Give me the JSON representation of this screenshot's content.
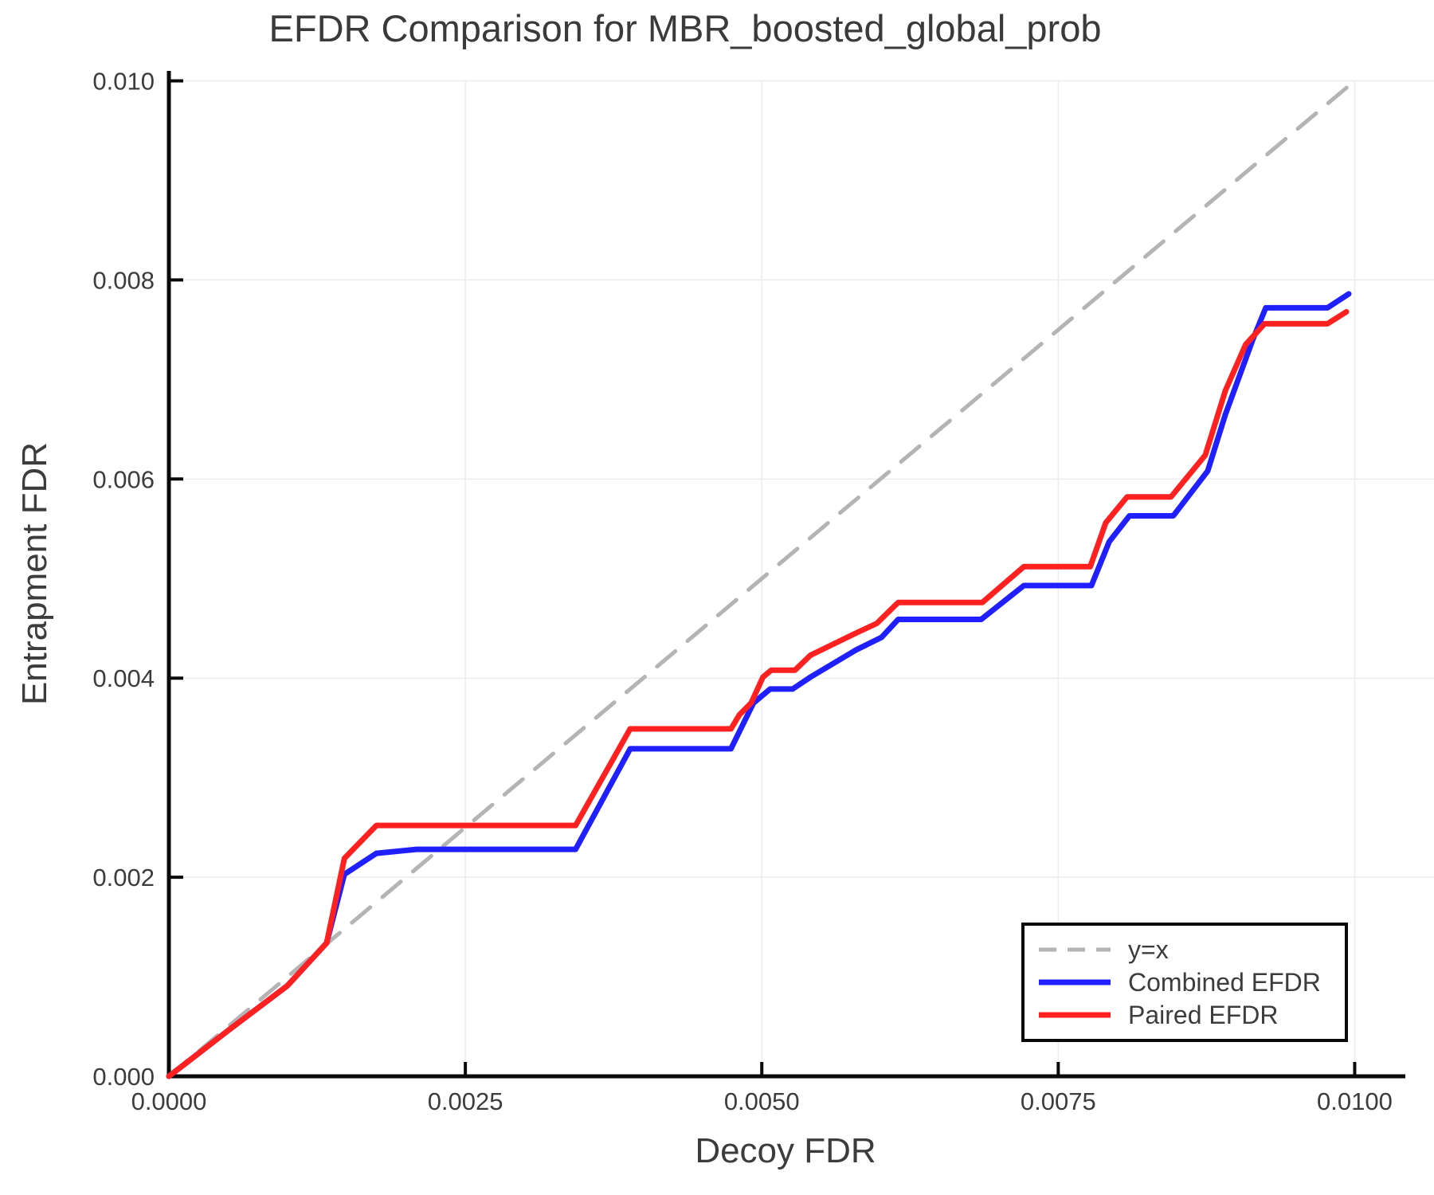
{
  "chart_data": {
    "type": "line",
    "title": "EFDR Comparison for MBR_boosted_global_prob",
    "xlabel": "Decoy FDR",
    "ylabel": "Entrapment FDR",
    "xlim": [
      0,
      0.0104
    ],
    "ylim": [
      0,
      0.0101
    ],
    "grid": true,
    "legend_position": "bottom-right",
    "colors": {
      "axis": "#0a0a0a",
      "grid": "#ececec",
      "text": "#3c3c3c",
      "identity_line": "#b4b4b4",
      "combined": "#1f1fff",
      "paired": "#ff2020"
    },
    "xticks": {
      "values": [
        0,
        0.0025,
        0.005,
        0.0075,
        0.01
      ],
      "labels": [
        "0.0000",
        "0.0025",
        "0.0050",
        "0.0075",
        "0.0100"
      ]
    },
    "yticks": {
      "values": [
        0,
        0.002,
        0.004,
        0.006,
        0.008,
        0.01
      ],
      "labels": [
        "0.000",
        "0.002",
        "0.004",
        "0.006",
        "0.008",
        "0.010"
      ]
    },
    "series": [
      {
        "name": "y=x",
        "color": "#b4b4b4",
        "dash": "30 20",
        "width": 5,
        "points": [
          [
            0,
            0
          ],
          [
            0.01,
            0.01
          ]
        ]
      },
      {
        "name": "Combined EFDR",
        "color": "#1f1fff",
        "dash": null,
        "width": 7,
        "points": [
          [
            0,
            0
          ],
          [
            0.0005,
            0.00046
          ],
          [
            0.001,
            0.00091
          ],
          [
            0.00133,
            0.00134
          ],
          [
            0.00148,
            0.00203
          ],
          [
            0.00175,
            0.00224
          ],
          [
            0.00209,
            0.00228
          ],
          [
            0.00343,
            0.00228
          ],
          [
            0.00389,
            0.00329
          ],
          [
            0.00474,
            0.00329
          ],
          [
            0.00493,
            0.00375
          ],
          [
            0.00507,
            0.00389
          ],
          [
            0.00526,
            0.00389
          ],
          [
            0.00541,
            0.00401
          ],
          [
            0.00579,
            0.00428
          ],
          [
            0.00601,
            0.00441
          ],
          [
            0.00615,
            0.00459
          ],
          [
            0.00685,
            0.00459
          ],
          [
            0.00721,
            0.00493
          ],
          [
            0.00778,
            0.00493
          ],
          [
            0.00793,
            0.00537
          ],
          [
            0.0081,
            0.00563
          ],
          [
            0.00847,
            0.00563
          ],
          [
            0.00876,
            0.00608
          ],
          [
            0.00891,
            0.00665
          ],
          [
            0.00914,
            0.0074
          ],
          [
            0.00925,
            0.00772
          ],
          [
            0.00977,
            0.00772
          ],
          [
            0.00995,
            0.00786
          ]
        ]
      },
      {
        "name": "Paired EFDR",
        "color": "#ff2020",
        "dash": null,
        "width": 7,
        "points": [
          [
            0,
            0
          ],
          [
            0.0005,
            0.00046
          ],
          [
            0.001,
            0.00091
          ],
          [
            0.00133,
            0.00134
          ],
          [
            0.00148,
            0.00219
          ],
          [
            0.00175,
            0.00252
          ],
          [
            0.00343,
            0.00252
          ],
          [
            0.00389,
            0.00349
          ],
          [
            0.00474,
            0.00349
          ],
          [
            0.00481,
            0.00363
          ],
          [
            0.00491,
            0.00375
          ],
          [
            0.00501,
            0.00401
          ],
          [
            0.00508,
            0.00408
          ],
          [
            0.00528,
            0.00408
          ],
          [
            0.00541,
            0.00423
          ],
          [
            0.00579,
            0.00445
          ],
          [
            0.00597,
            0.00455
          ],
          [
            0.00615,
            0.00476
          ],
          [
            0.00686,
            0.00476
          ],
          [
            0.00721,
            0.00512
          ],
          [
            0.00777,
            0.00512
          ],
          [
            0.0079,
            0.00556
          ],
          [
            0.00808,
            0.00582
          ],
          [
            0.00845,
            0.00582
          ],
          [
            0.00874,
            0.00624
          ],
          [
            0.00891,
            0.00689
          ],
          [
            0.00908,
            0.00735
          ],
          [
            0.00924,
            0.00756
          ],
          [
            0.00977,
            0.00756
          ],
          [
            0.00993,
            0.00768
          ]
        ]
      }
    ]
  }
}
